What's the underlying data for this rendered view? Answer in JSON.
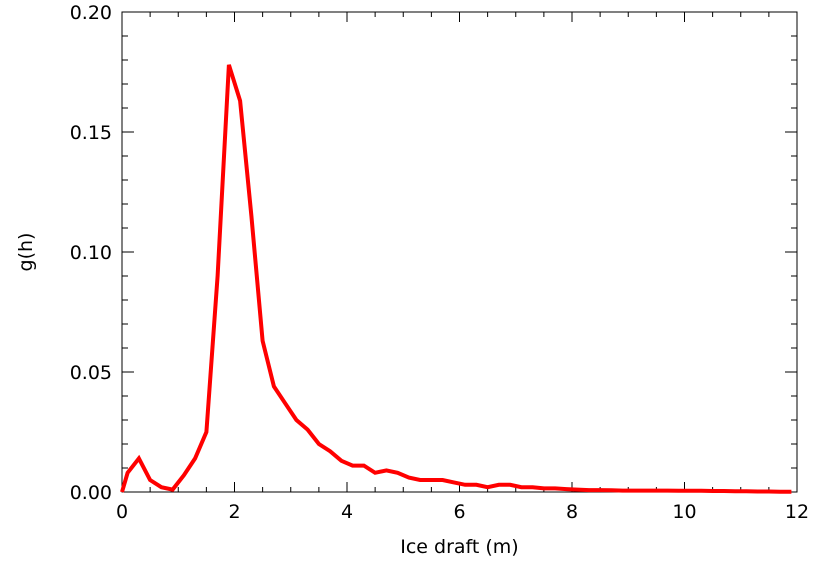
{
  "chart_data": {
    "type": "line",
    "title": "",
    "xlabel": "Ice draft (m)",
    "ylabel": "g(h)",
    "xlim": [
      0,
      12
    ],
    "ylim": [
      0,
      0.2
    ],
    "xticks": [
      0,
      2,
      4,
      6,
      8,
      10,
      12
    ],
    "xtick_labels": [
      "0",
      "2",
      "4",
      "6",
      "8",
      "10",
      "12"
    ],
    "yticks": [
      0,
      0.05,
      0.1,
      0.15,
      0.2
    ],
    "ytick_labels": [
      "0.00",
      "0.05",
      "0.10",
      "0.15",
      "0.20"
    ],
    "grid": false,
    "line_color": "#ff0000",
    "series": [
      {
        "x": [
          0.0,
          0.1,
          0.3,
          0.5,
          0.7,
          0.9,
          1.1,
          1.3,
          1.5,
          1.7,
          1.9,
          2.1,
          2.3,
          2.5,
          2.7,
          2.9,
          3.1,
          3.3,
          3.5,
          3.7,
          3.9,
          4.1,
          4.3,
          4.5,
          4.7,
          4.9,
          5.1,
          5.3,
          5.5,
          5.7,
          5.9,
          6.1,
          6.3,
          6.5,
          6.7,
          6.9,
          7.1,
          7.3,
          7.5,
          7.7,
          7.9,
          8.1,
          8.3,
          8.5,
          8.7,
          8.9,
          9.1,
          9.3,
          9.5,
          9.7,
          9.9,
          10.1,
          10.3,
          10.5,
          10.7,
          10.9,
          11.1,
          11.3,
          11.5,
          11.7,
          11.9
        ],
        "values": [
          0.0,
          0.008,
          0.014,
          0.005,
          0.002,
          0.001,
          0.007,
          0.014,
          0.025,
          0.09,
          0.178,
          0.163,
          0.115,
          0.063,
          0.044,
          0.037,
          0.03,
          0.026,
          0.02,
          0.017,
          0.013,
          0.011,
          0.011,
          0.008,
          0.009,
          0.008,
          0.006,
          0.005,
          0.005,
          0.005,
          0.004,
          0.003,
          0.003,
          0.002,
          0.003,
          0.003,
          0.002,
          0.002,
          0.0015,
          0.0015,
          0.0012,
          0.001,
          0.0008,
          0.0008,
          0.0007,
          0.0006,
          0.0006,
          0.0006,
          0.0006,
          0.0006,
          0.0005,
          0.0005,
          0.0005,
          0.0004,
          0.0004,
          0.0003,
          0.0003,
          0.0002,
          0.0002,
          0.0001,
          0.0001
        ]
      }
    ]
  }
}
